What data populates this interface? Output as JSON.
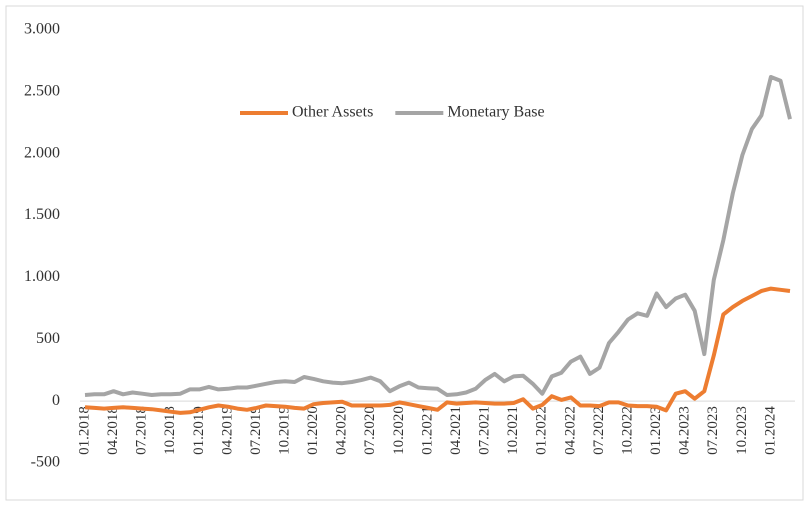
{
  "chart_data": {
    "type": "line",
    "categories": [
      "01.2018",
      null,
      null,
      "04.2018",
      null,
      null,
      "07.2018",
      null,
      null,
      "10.2018",
      null,
      null,
      "01.2019",
      null,
      null,
      "04.2019",
      null,
      null,
      "07.2019",
      null,
      null,
      "10.2019",
      null,
      null,
      "01.2020",
      null,
      null,
      "04.2020",
      null,
      null,
      "07.2020",
      null,
      null,
      "10.2020",
      null,
      null,
      "01.2021",
      null,
      null,
      "04.2021",
      null,
      null,
      "07.2021",
      null,
      null,
      "10.2021",
      null,
      null,
      "01.2022",
      null,
      null,
      "04.2022",
      null,
      null,
      "07.2022",
      null,
      null,
      "10.2022",
      null,
      null,
      "01.2023",
      null,
      null,
      "04.2023",
      null,
      null,
      "07.2023",
      null,
      null,
      "10.2023",
      null,
      null,
      "01.2024",
      null,
      null
    ],
    "series": [
      {
        "name": "Other Assets",
        "color": "#ed7d31",
        "values": [
          -50,
          -55,
          -60,
          -55,
          -50,
          -55,
          -60,
          -65,
          -75,
          -85,
          -95,
          -90,
          -70,
          -50,
          -35,
          -45,
          -60,
          -70,
          -55,
          -35,
          -40,
          -45,
          -55,
          -60,
          -25,
          -15,
          -10,
          -5,
          -35,
          -35,
          -35,
          -35,
          -30,
          -10,
          -25,
          -40,
          -55,
          -70,
          -10,
          -20,
          -15,
          -10,
          -15,
          -20,
          -20,
          -15,
          15,
          -60,
          -30,
          40,
          10,
          30,
          -35,
          -35,
          -40,
          -10,
          -10,
          -35,
          -40,
          -40,
          -45,
          -75,
          60,
          80,
          20,
          80,
          370,
          700,
          760,
          810,
          850,
          890,
          910,
          900,
          890
        ]
      },
      {
        "name": "Monetary Base",
        "color": "#a5a5a5",
        "values": [
          50,
          55,
          55,
          80,
          55,
          70,
          60,
          50,
          55,
          55,
          60,
          95,
          95,
          115,
          95,
          100,
          110,
          110,
          125,
          140,
          155,
          160,
          155,
          195,
          180,
          160,
          150,
          145,
          155,
          170,
          190,
          160,
          80,
          120,
          150,
          110,
          105,
          100,
          50,
          55,
          70,
          100,
          170,
          220,
          160,
          200,
          205,
          140,
          60,
          200,
          230,
          320,
          360,
          220,
          270,
          470,
          560,
          660,
          710,
          690,
          870,
          760,
          830,
          860,
          730,
          380,
          980,
          1300,
          1680,
          1990,
          2200,
          2310,
          2620,
          2590,
          2280
        ]
      }
    ],
    "ylim": [
      -500,
      3000
    ],
    "yticks": [
      {
        "value": -500,
        "label": "-500"
      },
      0,
      500,
      {
        "value": 1000,
        "label": "1.000"
      },
      {
        "value": 1500,
        "label": "1.500"
      },
      {
        "value": 2000,
        "label": "2.000"
      },
      {
        "value": 2500,
        "label": "2.500"
      },
      {
        "value": 3000,
        "label": "3.000"
      }
    ],
    "legend": "top"
  }
}
